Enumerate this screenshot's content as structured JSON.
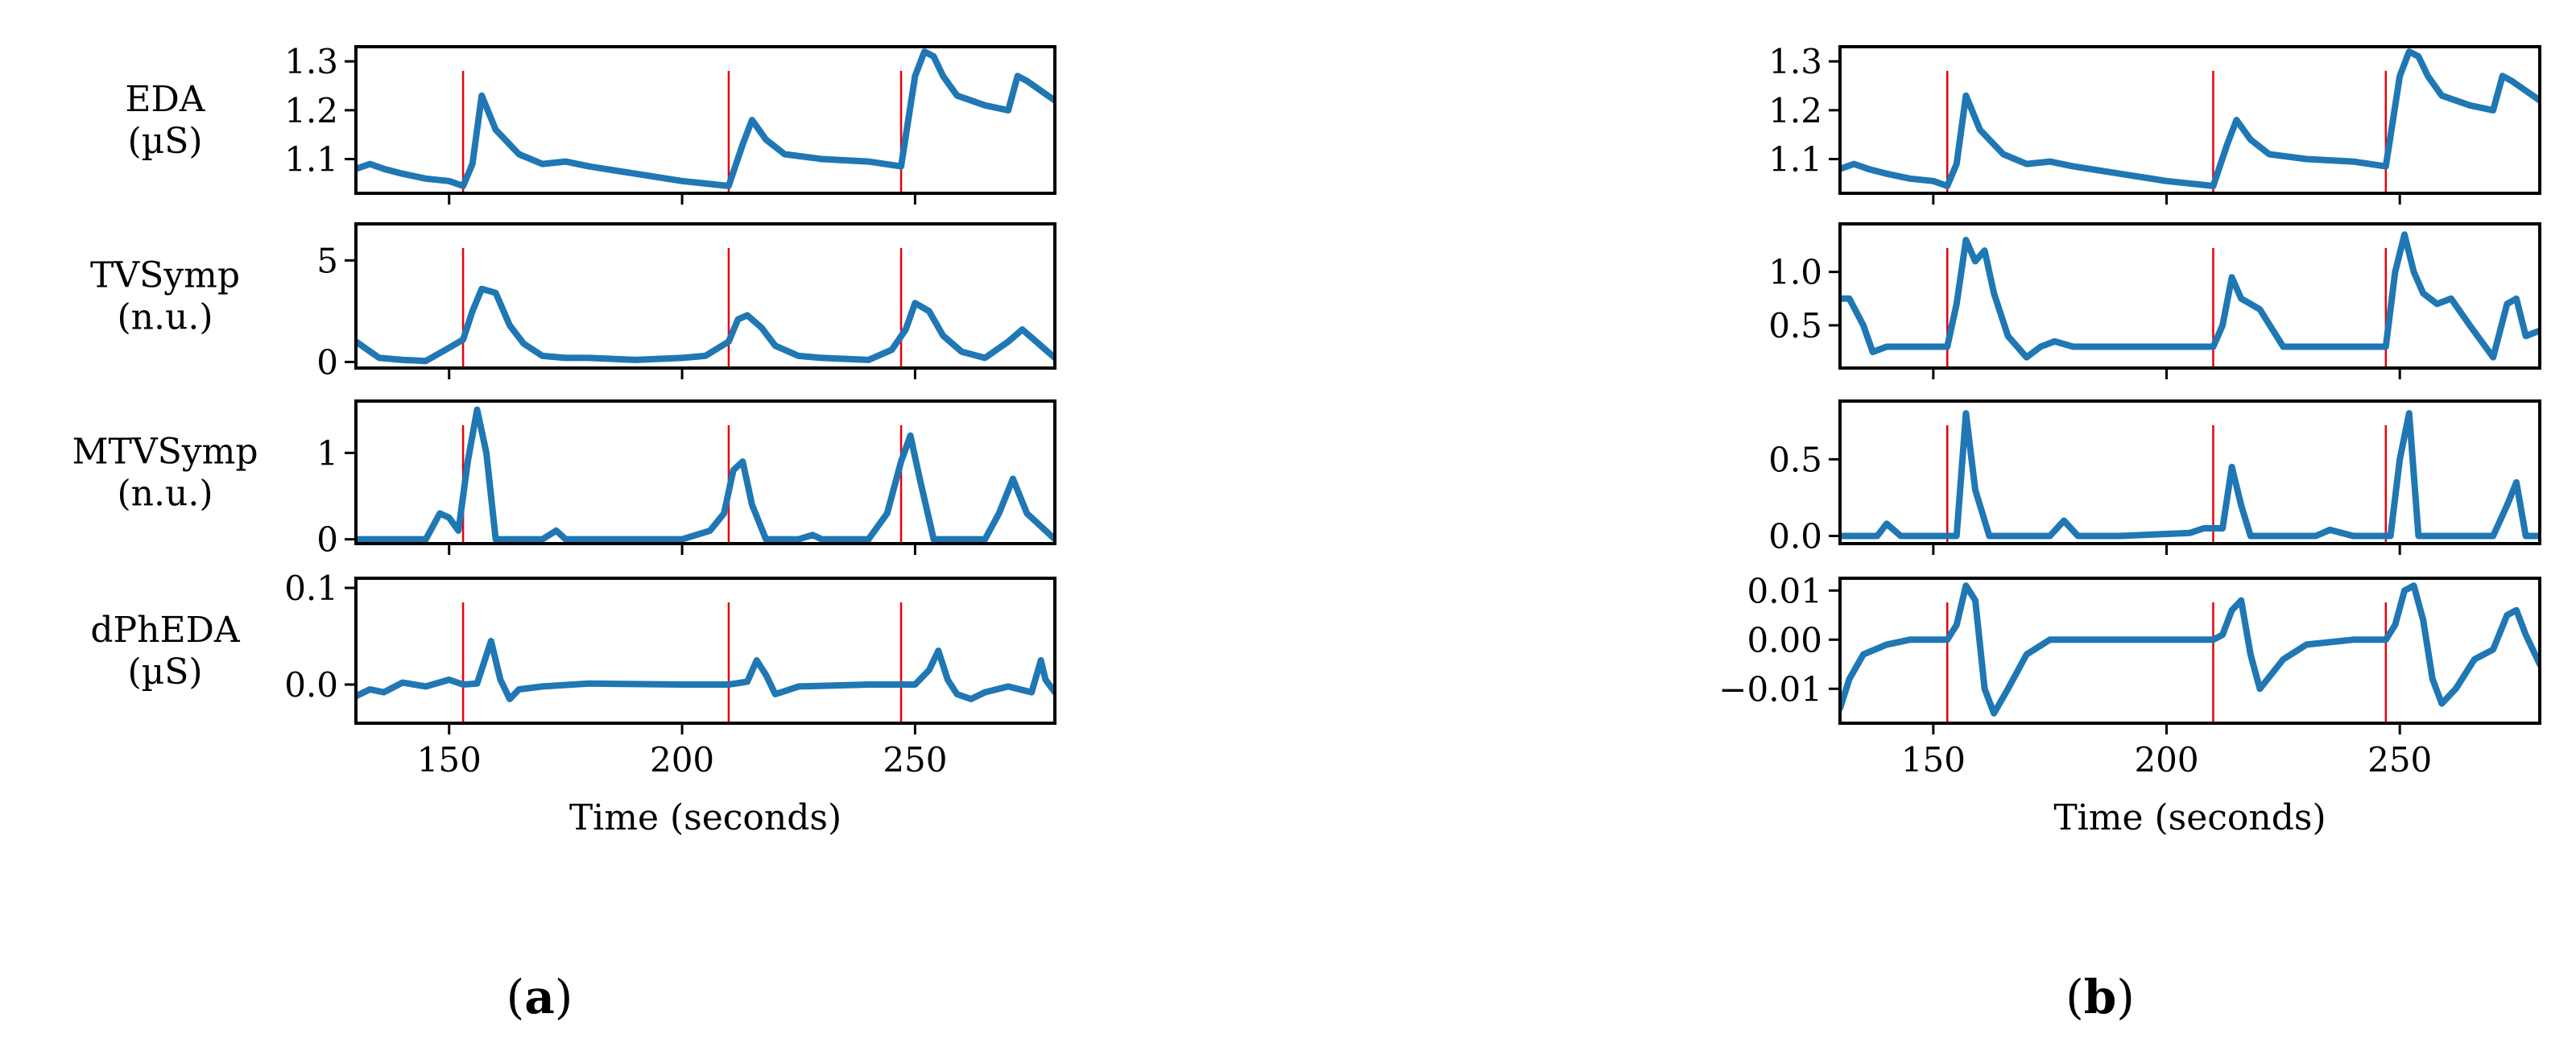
{
  "panel_labels": {
    "a": "a",
    "b": "b"
  },
  "chart_data": [
    {
      "type": "line",
      "panel": "a",
      "xlabel": "Time (seconds)",
      "xlim": [
        130,
        280
      ],
      "xticks": [
        150,
        200,
        250
      ],
      "event_times": [
        153,
        210,
        247
      ],
      "series_color": "#1f77b4",
      "event_color": "#e8000b",
      "subplots": [
        {
          "ylabel": [
            "EDA",
            "(µS)"
          ],
          "ylim": [
            1.03,
            1.33
          ],
          "yticks": [
            {
              "v": 1.1,
              "t": "1.1"
            },
            {
              "v": 1.2,
              "t": "1.2"
            },
            {
              "v": 1.3,
              "t": "1.3"
            }
          ],
          "x": [
            130,
            133,
            136,
            140,
            145,
            150,
            153,
            155,
            157,
            160,
            165,
            170,
            175,
            180,
            190,
            200,
            210,
            213,
            215,
            218,
            222,
            230,
            240,
            247,
            250,
            252,
            254,
            256,
            259,
            265,
            270,
            272,
            274,
            277,
            280
          ],
          "y": [
            1.08,
            1.09,
            1.08,
            1.07,
            1.06,
            1.055,
            1.045,
            1.09,
            1.23,
            1.16,
            1.11,
            1.09,
            1.095,
            1.085,
            1.07,
            1.055,
            1.045,
            1.13,
            1.18,
            1.14,
            1.11,
            1.1,
            1.095,
            1.085,
            1.27,
            1.32,
            1.31,
            1.27,
            1.23,
            1.21,
            1.2,
            1.27,
            1.26,
            1.24,
            1.22
          ]
        },
        {
          "ylabel": [
            "TVSymp",
            "(n.u.)"
          ],
          "ylim": [
            -0.3,
            6.8
          ],
          "yticks": [
            {
              "v": 0,
              "t": "0"
            },
            {
              "v": 5,
              "t": "5"
            }
          ],
          "x": [
            130,
            135,
            140,
            145,
            150,
            153,
            155,
            157,
            160,
            163,
            166,
            170,
            175,
            180,
            190,
            200,
            205,
            210,
            212,
            214,
            217,
            220,
            225,
            230,
            240,
            245,
            248,
            250,
            253,
            256,
            260,
            265,
            270,
            273,
            276,
            280
          ],
          "y": [
            1.0,
            0.2,
            0.1,
            0.05,
            0.7,
            1.1,
            2.5,
            3.6,
            3.4,
            1.8,
            0.9,
            0.3,
            0.2,
            0.2,
            0.1,
            0.2,
            0.3,
            1.0,
            2.1,
            2.3,
            1.7,
            0.8,
            0.3,
            0.2,
            0.1,
            0.6,
            1.6,
            2.9,
            2.5,
            1.3,
            0.5,
            0.2,
            1.0,
            1.6,
            1.0,
            0.2
          ]
        },
        {
          "ylabel": [
            "MTVSymp",
            "(n.u.)"
          ],
          "ylim": [
            -0.05,
            1.6
          ],
          "yticks": [
            {
              "v": 0,
              "t": "0"
            },
            {
              "v": 1,
              "t": "1"
            }
          ],
          "x": [
            130,
            140,
            145,
            148,
            150,
            152,
            154,
            156,
            158,
            160,
            162,
            170,
            173,
            175,
            180,
            190,
            200,
            203,
            206,
            209,
            211,
            213,
            215,
            218,
            225,
            228,
            230,
            240,
            244,
            247,
            249,
            251,
            254,
            265,
            268,
            271,
            274,
            280
          ],
          "y": [
            0,
            0,
            0,
            0.3,
            0.25,
            0.1,
            0.9,
            1.5,
            1.0,
            0,
            0,
            0,
            0.1,
            0,
            0,
            0,
            0,
            0.05,
            0.1,
            0.3,
            0.8,
            0.9,
            0.4,
            0,
            0,
            0.05,
            0,
            0,
            0.3,
            0.9,
            1.2,
            0.7,
            0,
            0,
            0.3,
            0.7,
            0.3,
            0
          ]
        },
        {
          "ylabel": [
            "dPhEDA",
            "(µS)"
          ],
          "ylim": [
            -0.04,
            0.11
          ],
          "yticks": [
            {
              "v": 0.0,
              "t": "0.0"
            },
            {
              "v": 0.1,
              "t": "0.1"
            }
          ],
          "x": [
            130,
            133,
            136,
            140,
            145,
            150,
            153,
            156,
            159,
            161,
            163,
            165,
            170,
            180,
            200,
            210,
            214,
            216,
            218,
            220,
            225,
            240,
            250,
            253,
            255,
            257,
            259,
            262,
            265,
            270,
            275,
            277,
            278,
            280
          ],
          "y": [
            -0.012,
            -0.005,
            -0.008,
            0.002,
            -0.002,
            0.005,
            0.0,
            0.001,
            0.045,
            0.005,
            -0.015,
            -0.005,
            -0.002,
            0.001,
            0.0,
            0.0,
            0.003,
            0.025,
            0.01,
            -0.01,
            -0.002,
            0.0,
            0.0,
            0.015,
            0.035,
            0.005,
            -0.01,
            -0.015,
            -0.008,
            -0.002,
            -0.008,
            0.025,
            0.005,
            -0.008
          ]
        }
      ]
    },
    {
      "type": "line",
      "panel": "b",
      "xlabel": "Time (seconds)",
      "xlim": [
        130,
        280
      ],
      "xticks": [
        150,
        200,
        250
      ],
      "event_times": [
        153,
        210,
        247
      ],
      "series_color": "#1f77b4",
      "event_color": "#e8000b",
      "subplots": [
        {
          "ylabel": [],
          "ylim": [
            1.03,
            1.33
          ],
          "yticks": [
            {
              "v": 1.1,
              "t": "1.1"
            },
            {
              "v": 1.2,
              "t": "1.2"
            },
            {
              "v": 1.3,
              "t": "1.3"
            }
          ],
          "x": [
            130,
            133,
            136,
            140,
            145,
            150,
            153,
            155,
            157,
            160,
            165,
            170,
            175,
            180,
            190,
            200,
            210,
            213,
            215,
            218,
            222,
            230,
            240,
            247,
            250,
            252,
            254,
            256,
            259,
            265,
            270,
            272,
            274,
            277,
            280
          ],
          "y": [
            1.08,
            1.09,
            1.08,
            1.07,
            1.06,
            1.055,
            1.045,
            1.09,
            1.23,
            1.16,
            1.11,
            1.09,
            1.095,
            1.085,
            1.07,
            1.055,
            1.045,
            1.13,
            1.18,
            1.14,
            1.11,
            1.1,
            1.095,
            1.085,
            1.27,
            1.32,
            1.31,
            1.27,
            1.23,
            1.21,
            1.2,
            1.27,
            1.26,
            1.24,
            1.22
          ]
        },
        {
          "ylabel": [],
          "ylim": [
            0.1,
            1.45
          ],
          "yticks": [
            {
              "v": 0.5,
              "t": "0.5"
            },
            {
              "v": 1.0,
              "t": "1.0"
            }
          ],
          "x": [
            130,
            132,
            135,
            137,
            140,
            145,
            150,
            153,
            155,
            157,
            159,
            161,
            163,
            166,
            170,
            173,
            176,
            180,
            190,
            200,
            207,
            210,
            212,
            214,
            216,
            218,
            220,
            225,
            230,
            240,
            247,
            249,
            251,
            253,
            255,
            258,
            261,
            265,
            270,
            273,
            275,
            277,
            280
          ],
          "y": [
            0.75,
            0.75,
            0.5,
            0.25,
            0.3,
            0.3,
            0.3,
            0.3,
            0.7,
            1.3,
            1.1,
            1.2,
            0.8,
            0.4,
            0.2,
            0.3,
            0.35,
            0.3,
            0.3,
            0.3,
            0.3,
            0.3,
            0.5,
            0.95,
            0.75,
            0.7,
            0.65,
            0.3,
            0.3,
            0.3,
            0.3,
            1.0,
            1.35,
            1.0,
            0.8,
            0.7,
            0.75,
            0.5,
            0.2,
            0.7,
            0.75,
            0.4,
            0.45
          ]
        },
        {
          "ylabel": [],
          "ylim": [
            -0.05,
            0.88
          ],
          "yticks": [
            {
              "v": 0.0,
              "t": "0.0"
            },
            {
              "v": 0.5,
              "t": "0.5"
            }
          ],
          "x": [
            130,
            138,
            140,
            143,
            150,
            155,
            157,
            159,
            162,
            175,
            178,
            181,
            190,
            205,
            208,
            212,
            214,
            216,
            218,
            225,
            232,
            235,
            240,
            248,
            250,
            252,
            254,
            270,
            273,
            275,
            277,
            280
          ],
          "y": [
            0,
            0,
            0.08,
            0,
            0,
            0,
            0.8,
            0.3,
            0,
            0,
            0.1,
            0,
            0,
            0.02,
            0.05,
            0.05,
            0.45,
            0.2,
            0,
            0,
            0,
            0.04,
            0,
            0,
            0.5,
            0.8,
            0,
            0,
            0.2,
            0.35,
            0,
            0
          ]
        },
        {
          "ylabel": [],
          "ylim": [
            -0.017,
            0.0125
          ],
          "yticks": [
            {
              "v": -0.01,
              "t": "−0.01"
            },
            {
              "v": 0.0,
              "t": "0.00"
            },
            {
              "v": 0.01,
              "t": "0.01"
            }
          ],
          "x": [
            130,
            132,
            135,
            140,
            145,
            150,
            153,
            155,
            157,
            159,
            161,
            163,
            166,
            170,
            175,
            180,
            190,
            200,
            210,
            212,
            214,
            216,
            218,
            220,
            225,
            230,
            240,
            247,
            249,
            251,
            253,
            255,
            257,
            259,
            262,
            266,
            270,
            273,
            275,
            277,
            280
          ],
          "y": [
            -0.014,
            -0.008,
            -0.003,
            -0.001,
            0.0,
            0.0,
            0.0,
            0.003,
            0.011,
            0.008,
            -0.01,
            -0.015,
            -0.01,
            -0.003,
            0.0,
            0.0,
            0.0,
            0.0,
            0.0,
            0.001,
            0.006,
            0.008,
            -0.003,
            -0.01,
            -0.004,
            -0.001,
            0.0,
            0.0,
            0.003,
            0.01,
            0.011,
            0.004,
            -0.008,
            -0.013,
            -0.01,
            -0.004,
            -0.002,
            0.005,
            0.006,
            0.001,
            -0.005
          ]
        }
      ]
    }
  ]
}
